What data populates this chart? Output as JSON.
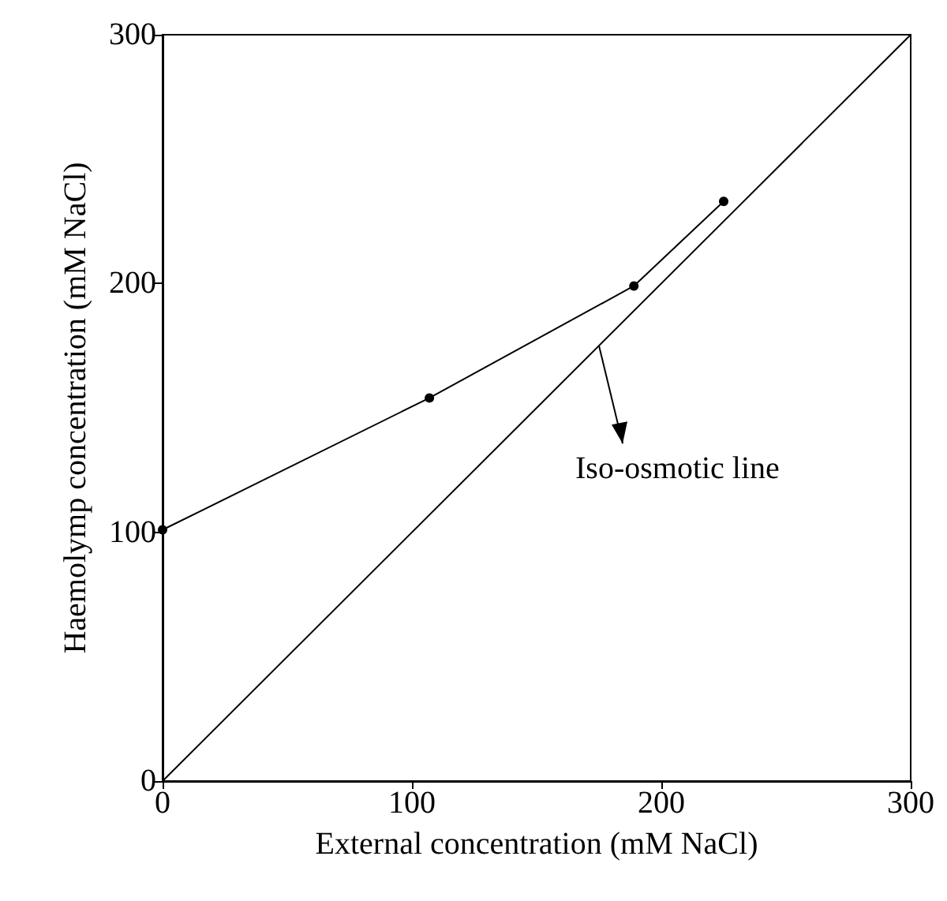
{
  "chart_data": {
    "type": "line",
    "xlabel": "External concentration (mM NaCl)",
    "ylabel": "Haemolymp concentration (mM NaCl)",
    "xlim": [
      0,
      300
    ],
    "xticks": [
      0,
      100,
      200,
      300
    ],
    "ylim": [
      0,
      300
    ],
    "yticks": [
      0,
      100,
      200,
      300
    ],
    "grid": false,
    "marker": "circle",
    "series": [
      {
        "color": "#000000",
        "x": [
          0,
          107,
          189,
          225
        ],
        "values": [
          101,
          154,
          199,
          233
        ]
      },
      {
        "color": "#000000",
        "x": [
          0,
          300
        ],
        "values": [
          0,
          300
        ],
        "marker": "none"
      }
    ],
    "annotations": [
      {
        "text": "Iso-osmotic line",
        "x": 175,
        "y": 175
      }
    ]
  }
}
